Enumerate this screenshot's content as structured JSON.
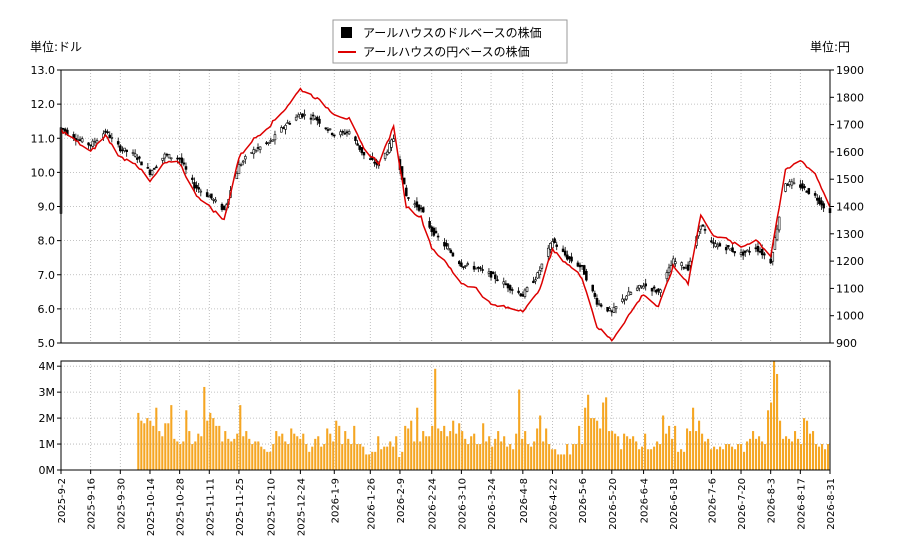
{
  "chart_data": [
    {
      "type": "line",
      "subtype": "ohlc-candlestick-with-line",
      "title": "",
      "left_unit_label": "単位:ドル",
      "right_unit_label": "単位:円",
      "legend": {
        "placement": "top-center",
        "entries": [
          {
            "label": "アールハウスのドルベースの株価",
            "marker": "black-square"
          },
          {
            "label": "アールハウスの円ベースの株価",
            "marker": "red-line"
          }
        ]
      },
      "y_left": {
        "min": 5.0,
        "max": 13.0,
        "ticks": [
          "5.0",
          "6.0",
          "7.0",
          "8.0",
          "9.0",
          "10.0",
          "11.0",
          "12.0",
          "13.0"
        ]
      },
      "y_right": {
        "min": 900,
        "max": 1900,
        "ticks": [
          "900",
          "1000",
          "1100",
          "1200",
          "1300",
          "1400",
          "1500",
          "1600",
          "1700",
          "1800",
          "1900"
        ]
      },
      "x_start": "2025-09-02",
      "x_end": "2026-08-31",
      "x_ticks": [
        "2025-9-2",
        "2025-9-16",
        "2025-9-30",
        "2025-10-14",
        "2025-10-28",
        "2025-11-11",
        "2025-11-25",
        "2025-12-10",
        "2025-12-24",
        "2026-1-9",
        "2026-1-26",
        "2026-2-9",
        "2026-2-24",
        "2026-3-10",
        "2026-3-24",
        "2026-4-8",
        "2026-4-22",
        "2026-5-6",
        "2026-5-20",
        "2026-6-4",
        "2026-6-18",
        "2026-7-6",
        "2026-7-20",
        "2026-8-3",
        "2026-8-17",
        "2026-8-31"
      ],
      "grid": true,
      "usd_price_series": [
        [
          "2025-09-02",
          11.3
        ],
        [
          "2025-09-09",
          11.0
        ],
        [
          "2025-09-16",
          10.8
        ],
        [
          "2025-09-23",
          11.2
        ],
        [
          "2025-09-30",
          10.7
        ],
        [
          "2025-10-07",
          10.5
        ],
        [
          "2025-10-14",
          10.0
        ],
        [
          "2025-10-21",
          10.5
        ],
        [
          "2025-10-28",
          10.4
        ],
        [
          "2025-11-04",
          9.6
        ],
        [
          "2025-11-11",
          9.3
        ],
        [
          "2025-11-18",
          8.9
        ],
        [
          "2025-11-25",
          10.2
        ],
        [
          "2025-12-01",
          10.6
        ],
        [
          "2025-12-10",
          10.9
        ],
        [
          "2025-12-17",
          11.4
        ],
        [
          "2025-12-24",
          11.7
        ],
        [
          "2025-12-31",
          11.6
        ],
        [
          "2026-01-09",
          11.1
        ],
        [
          "2026-01-16",
          11.2
        ],
        [
          "2026-01-23",
          10.5
        ],
        [
          "2026-01-30",
          10.2
        ],
        [
          "2026-02-06",
          11.0
        ],
        [
          "2026-02-12",
          9.3
        ],
        [
          "2026-02-19",
          8.9
        ],
        [
          "2026-02-24",
          8.3
        ],
        [
          "2026-03-03",
          7.8
        ],
        [
          "2026-03-10",
          7.3
        ],
        [
          "2026-03-17",
          7.2
        ],
        [
          "2026-03-24",
          7.0
        ],
        [
          "2026-03-31",
          6.7
        ],
        [
          "2026-04-08",
          6.4
        ],
        [
          "2026-04-15",
          7.0
        ],
        [
          "2026-04-22",
          8.0
        ],
        [
          "2026-04-29",
          7.5
        ],
        [
          "2026-05-06",
          7.2
        ],
        [
          "2026-05-13",
          6.2
        ],
        [
          "2026-05-20",
          5.9
        ],
        [
          "2026-05-27",
          6.4
        ],
        [
          "2026-06-04",
          6.7
        ],
        [
          "2026-06-11",
          6.5
        ],
        [
          "2026-06-18",
          7.4
        ],
        [
          "2026-06-25",
          7.2
        ],
        [
          "2026-07-01",
          8.5
        ],
        [
          "2026-07-06",
          7.9
        ],
        [
          "2026-07-13",
          7.8
        ],
        [
          "2026-07-20",
          7.6
        ],
        [
          "2026-07-27",
          7.8
        ],
        [
          "2026-08-03",
          7.4
        ],
        [
          "2026-08-10",
          9.7
        ],
        [
          "2026-08-17",
          9.6
        ],
        [
          "2026-08-24",
          9.3
        ],
        [
          "2026-08-31",
          8.8
        ]
      ],
      "jpy_price_series": [
        [
          "2025-09-02",
          1680
        ],
        [
          "2025-09-09",
          1640
        ],
        [
          "2025-09-16",
          1600
        ],
        [
          "2025-09-23",
          1660
        ],
        [
          "2025-09-30",
          1580
        ],
        [
          "2025-10-07",
          1560
        ],
        [
          "2025-10-14",
          1490
        ],
        [
          "2025-10-21",
          1560
        ],
        [
          "2025-10-28",
          1560
        ],
        [
          "2025-11-04",
          1450
        ],
        [
          "2025-11-11",
          1400
        ],
        [
          "2025-11-18",
          1350
        ],
        [
          "2025-11-25",
          1580
        ],
        [
          "2025-12-01",
          1640
        ],
        [
          "2025-12-10",
          1700
        ],
        [
          "2025-12-17",
          1760
        ],
        [
          "2025-12-24",
          1830
        ],
        [
          "2025-12-31",
          1800
        ],
        [
          "2026-01-09",
          1740
        ],
        [
          "2026-01-16",
          1720
        ],
        [
          "2026-01-23",
          1610
        ],
        [
          "2026-01-30",
          1560
        ],
        [
          "2026-02-06",
          1690
        ],
        [
          "2026-02-12",
          1400
        ],
        [
          "2026-02-19",
          1360
        ],
        [
          "2026-02-24",
          1250
        ],
        [
          "2026-03-03",
          1190
        ],
        [
          "2026-03-10",
          1120
        ],
        [
          "2026-03-17",
          1100
        ],
        [
          "2026-03-24",
          1040
        ],
        [
          "2026-03-31",
          1030
        ],
        [
          "2026-04-08",
          1020
        ],
        [
          "2026-04-15",
          1080
        ],
        [
          "2026-04-22",
          1240
        ],
        [
          "2026-04-29",
          1190
        ],
        [
          "2026-05-06",
          1140
        ],
        [
          "2026-05-13",
          960
        ],
        [
          "2026-05-20",
          910
        ],
        [
          "2026-05-27",
          990
        ],
        [
          "2026-06-04",
          1080
        ],
        [
          "2026-06-11",
          1030
        ],
        [
          "2026-06-18",
          1180
        ],
        [
          "2026-06-25",
          1120
        ],
        [
          "2026-07-01",
          1370
        ],
        [
          "2026-07-06",
          1300
        ],
        [
          "2026-07-13",
          1280
        ],
        [
          "2026-07-20",
          1250
        ],
        [
          "2026-07-27",
          1280
        ],
        [
          "2026-08-03",
          1220
        ],
        [
          "2026-08-10",
          1530
        ],
        [
          "2026-08-17",
          1570
        ],
        [
          "2026-08-24",
          1520
        ],
        [
          "2026-08-31",
          1400
        ]
      ]
    },
    {
      "type": "bar",
      "title": "",
      "y_ticks": [
        "0M",
        "1M",
        "2M",
        "3M",
        "4M"
      ],
      "ylim": [
        0,
        4.2
      ],
      "unit": "M",
      "volume_start": "2025-10-08",
      "volume_end": "2026-08-31",
      "volume_millions": [
        2.2,
        1.9,
        1.8,
        2.0,
        1.9,
        1.7,
        2.4,
        1.5,
        1.3,
        1.8,
        1.8,
        2.5,
        1.2,
        1.1,
        1.0,
        1.1,
        2.3,
        1.5,
        1.0,
        1.1,
        1.4,
        1.3,
        3.2,
        1.9,
        2.2,
        2.0,
        1.7,
        1.7,
        1.1,
        1.5,
        1.2,
        1.1,
        1.2,
        1.4,
        2.5,
        1.3,
        1.5,
        1.2,
        1.0,
        1.1,
        1.1,
        0.9,
        0.8,
        0.7,
        0.7,
        1.0,
        1.5,
        1.3,
        1.4,
        1.1,
        1.0,
        1.6,
        1.4,
        1.3,
        1.2,
        1.4,
        1.0,
        0.7,
        0.9,
        1.2,
        1.3,
        0.9,
        1.0,
        1.6,
        1.4,
        1.1,
        1.9,
        1.7,
        1.0,
        1.5,
        1.2,
        1.0,
        1.7,
        1.0,
        1.0,
        0.9,
        0.6,
        0.6,
        0.7,
        0.7,
        1.3,
        0.8,
        0.9,
        0.9,
        1.1,
        0.9,
        1.3,
        0.5,
        0.7,
        1.7,
        1.6,
        1.9,
        1.1,
        2.4,
        1.1,
        1.5,
        1.3,
        1.3,
        1.7,
        3.9,
        1.6,
        1.5,
        1.7,
        1.3,
        1.5,
        1.9,
        1.4,
        1.8,
        1.5,
        1.2,
        1.0,
        1.3,
        1.4,
        1.0,
        1.0,
        1.8,
        1.1,
        1.3,
        0.9,
        1.2,
        1.5,
        1.1,
        1.3,
        0.9,
        1.0,
        0.8,
        1.4,
        3.1,
        1.2,
        1.5,
        1.0,
        0.9,
        1.1,
        1.6,
        2.1,
        1.1,
        1.6,
        1.0,
        0.8,
        0.8,
        0.6,
        0.6,
        0.6,
        1.0,
        0.6,
        1.0,
        1.0,
        1.7,
        1.0,
        2.4,
        2.9,
        2.0,
        2.0,
        1.9,
        1.6,
        2.6,
        2.8,
        1.5,
        1.5,
        1.4,
        1.3,
        0.8,
        1.4,
        1.3,
        1.2,
        1.3,
        1.1,
        0.8,
        0.9,
        1.4,
        0.8,
        0.8,
        0.9,
        1.1,
        1.0,
        2.1,
        1.4,
        1.7,
        1.2,
        1.7,
        0.7,
        0.8,
        0.7,
        1.6,
        1.5,
        2.4,
        1.5,
        1.9,
        1.4,
        1.1,
        1.2,
        0.8,
        0.9,
        0.8,
        0.9,
        0.8,
        1.0,
        1.0,
        0.9,
        0.8,
        1.0,
        1.0,
        0.7,
        1.1,
        1.2,
        1.5,
        1.2,
        1.3,
        1.1,
        1.0,
        2.3,
        2.6,
        4.2,
        3.7,
        1.9,
        1.2,
        1.3,
        1.2,
        1.1,
        1.5,
        1.2,
        1.0,
        2.0,
        1.9,
        1.4,
        1.5,
        1.0,
        0.9,
        1.0,
        0.8,
        1.0
      ]
    }
  ],
  "colors": {
    "candle": "#000000",
    "jpy_line": "#dd0000",
    "volume": "#f5a623",
    "grid": "#b0b0b0",
    "axis": "#000000",
    "background": "#ffffff"
  }
}
